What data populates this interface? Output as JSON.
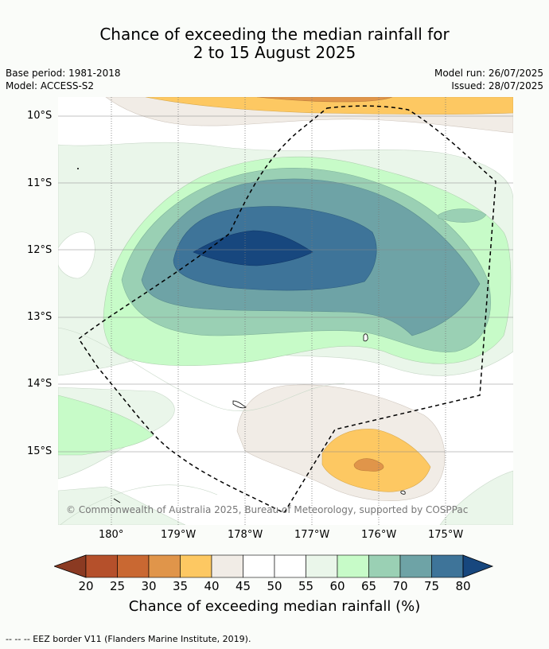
{
  "title": {
    "line1": "Chance of exceeding the median rainfall for",
    "line2": "2 to 15 August 2025"
  },
  "meta": {
    "base_period": "Base period: 1981-2018",
    "model": "Model: ACCESS-S2",
    "model_run": "Model run: 26/07/2025",
    "issued": "Issued: 28/07/2025"
  },
  "map": {
    "lat_labels": [
      "10°S",
      "11°S",
      "12°S",
      "13°S",
      "14°S",
      "15°S"
    ],
    "lon_labels": [
      "180°",
      "179°W",
      "178°W",
      "177°W",
      "176°W",
      "175°W"
    ],
    "copyright": "© Commonwealth of Australia 2025, Bureau of Meteorology, supported by COSPPac",
    "lon_range": [
      179.2,
      -174.0
    ],
    "lat_range": [
      -9.7,
      -16.1
    ]
  },
  "colorbar": {
    "ticks": [
      "20",
      "25",
      "30",
      "35",
      "40",
      "45",
      "50",
      "55",
      "60",
      "65",
      "70",
      "75",
      "80"
    ],
    "colors": [
      "#8b3a22",
      "#b5502b",
      "#c96832",
      "#e0954a",
      "#fdc862",
      "#f1ece6",
      "#ffffff",
      "#ffffff",
      "#eaf6ea",
      "#c7fbc8",
      "#9ad0b4",
      "#6ea3a6",
      "#3e7499",
      "#17477e"
    ],
    "label": "Chance of exceeding median rainfall (%)"
  },
  "footer": "--  --  -- EEZ border V11 (Flanders Marine Institute, 2019)."
}
